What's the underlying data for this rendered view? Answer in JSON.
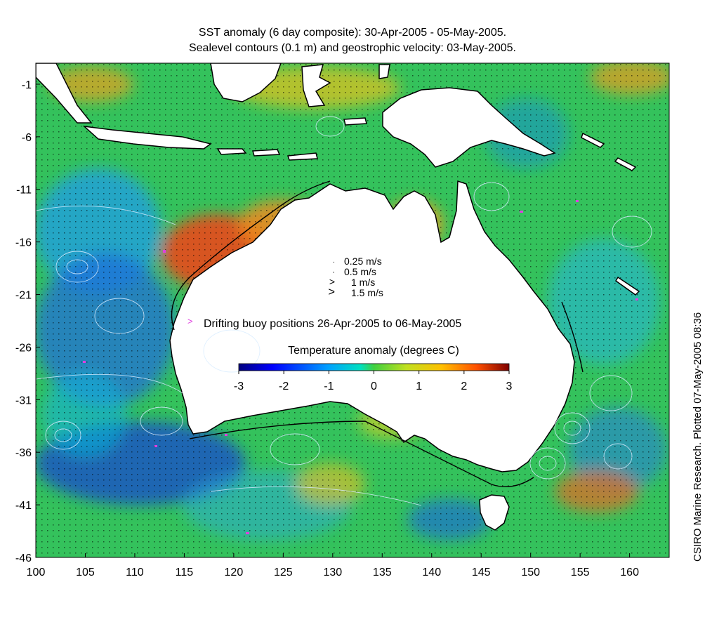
{
  "title": {
    "line1": "SST anomaly (6 day composite): 30-Apr-2005 - 05-May-2005.",
    "line2": "Sealevel contours (0.1 m) and geostrophic velocity: 03-May-2005."
  },
  "side_credit": "CSIRO Marine Research. Plotted 07-May-2005 08:36",
  "axes": {
    "x_ticks": [
      "100",
      "105",
      "110",
      "115",
      "120",
      "125",
      "130",
      "135",
      "140",
      "145",
      "150",
      "155",
      "160"
    ],
    "y_ticks": [
      "-1",
      "-6",
      "-11",
      "-16",
      "-21",
      "-26",
      "-31",
      "-36",
      "-41",
      "-46"
    ],
    "lon_range": [
      100,
      164
    ],
    "lat_range": [
      -46,
      1
    ]
  },
  "velocity_legend": [
    {
      "label": "0.25 m/s",
      "speed": 0.25
    },
    {
      "label": "0.5 m/s",
      "speed": 0.5
    },
    {
      "label": "1 m/s",
      "speed": 1
    },
    {
      "label": "1.5 m/s",
      "speed": 1.5
    }
  ],
  "buoy_legend": {
    "label": "Drifting buoy positions 26-Apr-2005 to 06-May-2005",
    "color": "#e040e0"
  },
  "colorbar": {
    "title": "Temperature anomaly (degrees C)",
    "ticks": [
      "-3",
      "-2",
      "-1",
      "0",
      "1",
      "2",
      "3"
    ],
    "range": [
      -3,
      3
    ],
    "colors": [
      "#00007f",
      "#0000ff",
      "#007fff",
      "#00ffff",
      "#7fff7f",
      "#ffff00",
      "#ff7f00",
      "#ff0000",
      "#7f0000"
    ]
  },
  "colors": {
    "land": "#ffffff",
    "ocean_base": "#33c05a",
    "warm": "#e3712a",
    "cool": "#2f7fd2",
    "contour": "#cfe8ff"
  }
}
